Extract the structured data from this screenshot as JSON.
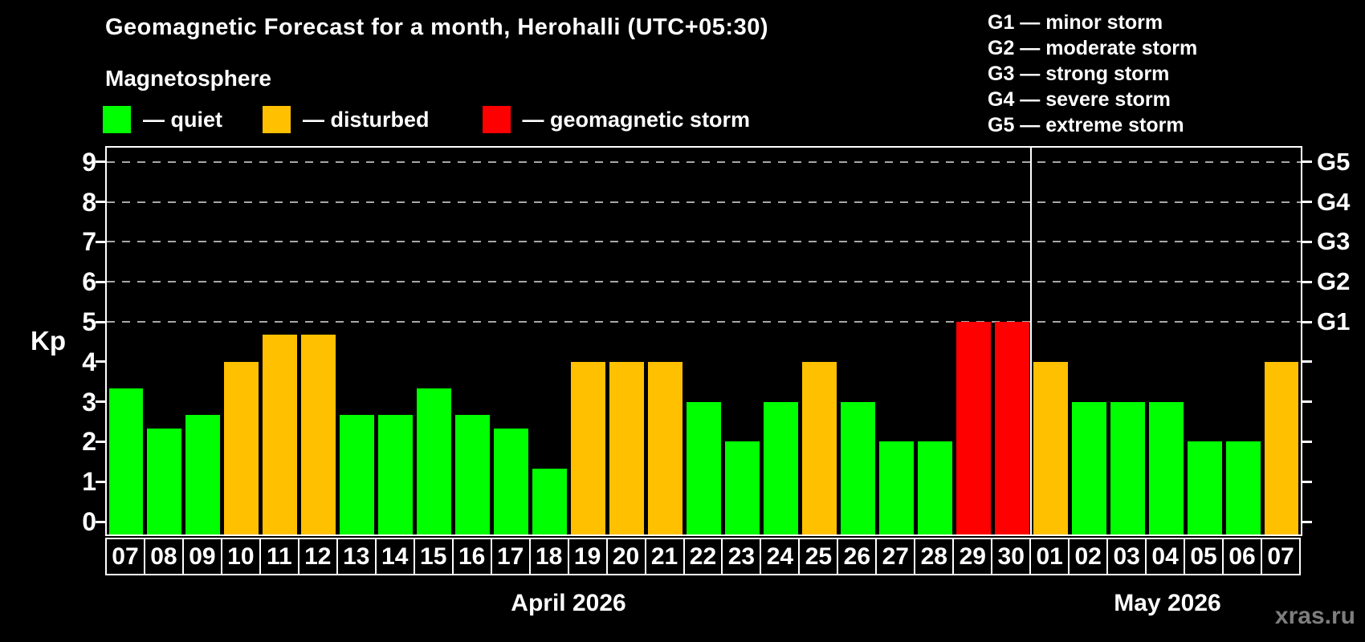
{
  "header": {
    "title": "Geomagnetic Forecast for a month, Herohalli (UTC+05:30)",
    "subtitle": "Magnetosphere",
    "legend": [
      {
        "name": "quiet",
        "label": "— quiet",
        "color": "#00ff00"
      },
      {
        "name": "disturbed",
        "label": "— disturbed",
        "color": "#ffc000"
      },
      {
        "name": "geomagnetic-storm",
        "label": "— geomagnetic storm",
        "color": "#ff0000"
      }
    ],
    "g_scale_legend": [
      "G1 — minor storm",
      "G2 — moderate storm",
      "G3 — strong storm",
      "G4 — severe storm",
      "G5 — extreme storm"
    ]
  },
  "chart_data": {
    "type": "bar",
    "title": "Geomagnetic Forecast for a month, Herohalli (UTC+05:30)",
    "xlabel": "",
    "ylabel": "Kp",
    "ylim": [
      0,
      9
    ],
    "y_ticks": [
      0,
      1,
      2,
      3,
      4,
      5,
      6,
      7,
      8,
      9
    ],
    "gridlines_at_kp": [
      5,
      6,
      7,
      8,
      9
    ],
    "grid_style": "dashed horizontal lines only at storm levels G1–G5",
    "legend_position": "top-left",
    "right_axis_labels": [
      {
        "label": "G1",
        "kp": 5
      },
      {
        "label": "G2",
        "kp": 6
      },
      {
        "label": "G3",
        "kp": 7
      },
      {
        "label": "G4",
        "kp": 8
      },
      {
        "label": "G5",
        "kp": 9
      }
    ],
    "categories": [
      "07",
      "08",
      "09",
      "10",
      "11",
      "12",
      "13",
      "14",
      "15",
      "16",
      "17",
      "18",
      "19",
      "20",
      "21",
      "22",
      "23",
      "24",
      "25",
      "26",
      "27",
      "28",
      "29",
      "30",
      "01",
      "02",
      "03",
      "04",
      "05",
      "06",
      "07"
    ],
    "values": [
      3.33,
      2.33,
      2.67,
      4.0,
      4.67,
      4.67,
      2.67,
      2.67,
      3.33,
      2.67,
      2.33,
      1.33,
      4.0,
      4.0,
      4.0,
      3.0,
      2.0,
      3.0,
      4.0,
      3.0,
      2.0,
      2.0,
      5.0,
      5.0,
      4.0,
      3.0,
      3.0,
      3.0,
      2.0,
      2.0,
      4.0
    ],
    "statuses": [
      "quiet",
      "quiet",
      "quiet",
      "disturbed",
      "disturbed",
      "disturbed",
      "quiet",
      "quiet",
      "quiet",
      "quiet",
      "quiet",
      "quiet",
      "disturbed",
      "disturbed",
      "disturbed",
      "quiet",
      "quiet",
      "quiet",
      "disturbed",
      "quiet",
      "quiet",
      "quiet",
      "storm",
      "storm",
      "disturbed",
      "quiet",
      "quiet",
      "quiet",
      "quiet",
      "quiet",
      "disturbed"
    ],
    "status_colors": {
      "quiet": "#00ff00",
      "disturbed": "#ffc000",
      "storm": "#ff0000"
    },
    "months": [
      {
        "label": "April 2026",
        "days": 24
      },
      {
        "label": "May 2026",
        "days": 7
      }
    ]
  },
  "watermark": "xras.ru"
}
